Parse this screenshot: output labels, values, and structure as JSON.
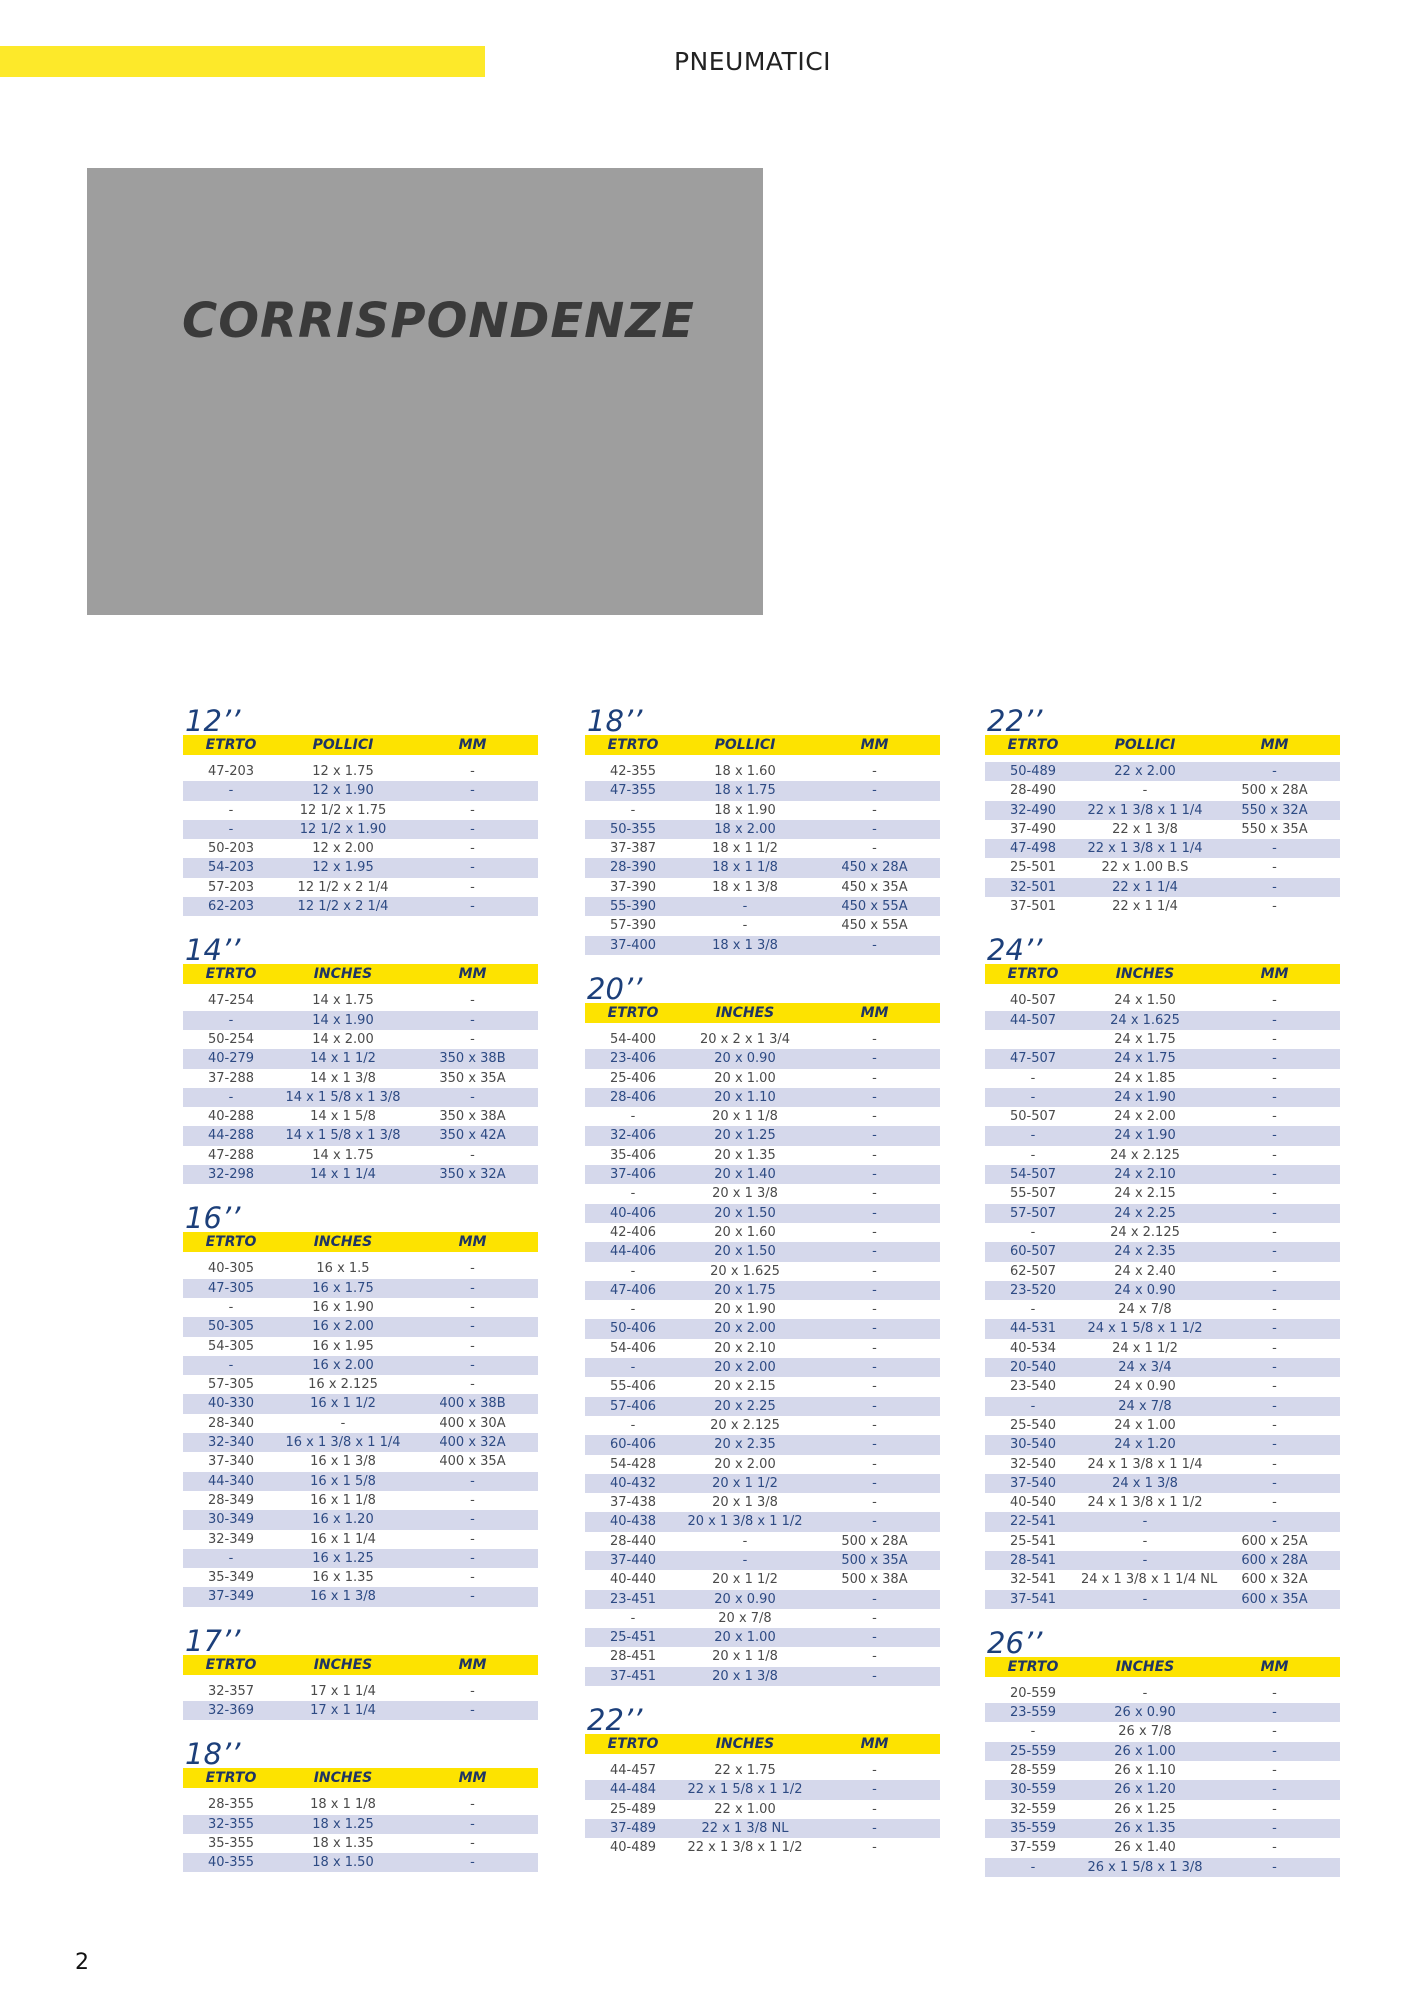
{
  "header": {
    "title": "PNEUMATICI",
    "accent_color": "#fde92a"
  },
  "hero": {
    "title": "CORRISPONDENZE"
  },
  "page_number": "2",
  "columns": [
    [
      {
        "title": "12’’",
        "headers": [
          "ETRTO",
          "POLLICI",
          "MM"
        ],
        "rows": [
          [
            "47-203",
            "12 x 1.75",
            "-"
          ],
          [
            "-",
            "12 x 1.90",
            "-"
          ],
          [
            "-",
            "12 1/2 x 1.75",
            "-"
          ],
          [
            "-",
            "12 1/2 x 1.90",
            "-"
          ],
          [
            "50-203",
            "12 x 2.00",
            "-"
          ],
          [
            "54-203",
            "12 x 1.95",
            "-"
          ],
          [
            "57-203",
            "12 1/2 x 2 1/4",
            "-"
          ],
          [
            "62-203",
            "12 1/2 x 2 1/4",
            "-"
          ]
        ]
      },
      {
        "title": "14’’",
        "headers": [
          "ETRTO",
          "INCHES",
          "MM"
        ],
        "rows": [
          [
            "47-254",
            "14 x 1.75",
            "-"
          ],
          [
            "-",
            "14 x 1.90",
            "-"
          ],
          [
            "50-254",
            "14 x 2.00",
            "-"
          ],
          [
            "40-279",
            "14 x 1 1/2",
            "350 x 38B"
          ],
          [
            "37-288",
            "14 x 1 3/8",
            "350 x 35A"
          ],
          [
            "-",
            "14 x 1 5/8 x 1 3/8",
            "-"
          ],
          [
            "40-288",
            "14 x 1 5/8",
            "350 x 38A"
          ],
          [
            "44-288",
            "14 x 1 5/8 x 1 3/8",
            "350 x 42A"
          ],
          [
            "47-288",
            "14 x 1.75",
            "-"
          ],
          [
            "32-298",
            "14 x 1 1/4",
            "350 x 32A"
          ]
        ]
      },
      {
        "title": "16’’",
        "headers": [
          "ETRTO",
          "INCHES",
          "MM"
        ],
        "rows": [
          [
            "40-305",
            "16 x 1.5",
            "-"
          ],
          [
            "47-305",
            "16 x 1.75",
            "-"
          ],
          [
            "-",
            "16 x 1.90",
            "-"
          ],
          [
            "50-305",
            "16 x 2.00",
            "-"
          ],
          [
            "54-305",
            "16 x 1.95",
            "-"
          ],
          [
            "-",
            "16 x 2.00",
            "-"
          ],
          [
            "57-305",
            "16 x 2.125",
            "-"
          ],
          [
            "40-330",
            "16 x 1 1/2",
            "400 x 38B"
          ],
          [
            "28-340",
            "-",
            "400 x 30A"
          ],
          [
            "32-340",
            "16 x 1 3/8 x 1 1/4",
            "400 x 32A"
          ],
          [
            "37-340",
            "16 x 1 3/8",
            "400 x 35A"
          ],
          [
            "44-340",
            "16 x 1 5/8",
            "-"
          ],
          [
            "28-349",
            "16 x 1 1/8",
            "-"
          ],
          [
            "30-349",
            "16 x 1.20",
            "-"
          ],
          [
            "32-349",
            "16 x 1 1/4",
            "-"
          ],
          [
            "-",
            "16 x 1.25",
            "-"
          ],
          [
            "35-349",
            "16 x 1.35",
            "-"
          ],
          [
            "37-349",
            "16 x 1 3/8",
            "-"
          ]
        ]
      },
      {
        "title": "17’’",
        "headers": [
          "ETRTO",
          "INCHES",
          "MM"
        ],
        "rows": [
          [
            "32-357",
            "17 x 1 1/4",
            "-"
          ],
          [
            "32-369",
            "17 x 1 1/4",
            "-"
          ]
        ]
      },
      {
        "title": "18’’",
        "headers": [
          "ETRTO",
          "INCHES",
          "MM"
        ],
        "rows": [
          [
            "28-355",
            "18 x 1 1/8",
            "-"
          ],
          [
            "32-355",
            "18 x 1.25",
            "-"
          ],
          [
            "35-355",
            "18 x 1.35",
            "-"
          ],
          [
            "40-355",
            "18 x 1.50",
            "-"
          ]
        ]
      }
    ],
    [
      {
        "title": "18’’",
        "headers": [
          "ETRTO",
          "POLLICI",
          "MM"
        ],
        "rows": [
          [
            "42-355",
            "18 x 1.60",
            "-"
          ],
          [
            "47-355",
            "18 x 1.75",
            "-"
          ],
          [
            "-",
            "18 x 1.90",
            "-"
          ],
          [
            "50-355",
            "18 x 2.00",
            "-"
          ],
          [
            "37-387",
            "18 x 1 1/2",
            "-"
          ],
          [
            "28-390",
            "18 x 1 1/8",
            "450 x 28A"
          ],
          [
            "37-390",
            "18 x 1 3/8",
            "450 x 35A"
          ],
          [
            "55-390",
            "-",
            "450 x 55A"
          ],
          [
            "57-390",
            "-",
            "450 x 55A"
          ],
          [
            "37-400",
            "18 x 1 3/8",
            "-"
          ]
        ]
      },
      {
        "title": "20’’",
        "headers": [
          "ETRTO",
          "INCHES",
          "MM"
        ],
        "rows": [
          [
            "54-400",
            "20 x 2 x 1 3/4",
            "-"
          ],
          [
            "23-406",
            "20 x 0.90",
            "-"
          ],
          [
            "25-406",
            "20 x 1.00",
            "-"
          ],
          [
            "28-406",
            "20 x 1.10",
            "-"
          ],
          [
            "-",
            "20 x 1 1/8",
            "-"
          ],
          [
            "32-406",
            "20 x 1.25",
            "-"
          ],
          [
            "35-406",
            "20 x 1.35",
            "-"
          ],
          [
            "37-406",
            "20 x 1.40",
            "-"
          ],
          [
            "-",
            "20 x 1 3/8",
            "-"
          ],
          [
            "40-406",
            "20 x 1.50",
            "-"
          ],
          [
            "42-406",
            "20 x 1.60",
            "-"
          ],
          [
            "44-406",
            "20 x 1.50",
            "-"
          ],
          [
            "-",
            "20 x 1.625",
            "-"
          ],
          [
            "47-406",
            "20 x 1.75",
            "-"
          ],
          [
            "-",
            "20 x 1.90",
            "-"
          ],
          [
            "50-406",
            "20 x 2.00",
            "-"
          ],
          [
            "54-406",
            "20 x 2.10",
            "-"
          ],
          [
            "-",
            "20 x 2.00",
            "-"
          ],
          [
            "55-406",
            "20 x 2.15",
            "-"
          ],
          [
            "57-406",
            "20 x 2.25",
            "-"
          ],
          [
            "-",
            "20 x 2.125",
            "-"
          ],
          [
            "60-406",
            "20 x 2.35",
            "-"
          ],
          [
            "54-428",
            "20 x 2.00",
            "-"
          ],
          [
            "40-432",
            "20 x 1 1/2",
            "-"
          ],
          [
            "37-438",
            "20 x 1 3/8",
            "-"
          ],
          [
            "40-438",
            "20 x 1 3/8 x 1 1/2",
            "-"
          ],
          [
            "28-440",
            "-",
            "500 x 28A"
          ],
          [
            "37-440",
            "-",
            "500 x 35A"
          ],
          [
            "40-440",
            "20 x 1 1/2",
            "500 x 38A"
          ],
          [
            "23-451",
            "20 x 0.90",
            "-"
          ],
          [
            "-",
            "20 x 7/8",
            "-"
          ],
          [
            "25-451",
            "20 x 1.00",
            "-"
          ],
          [
            "28-451",
            "20 x 1 1/8",
            "-"
          ],
          [
            "37-451",
            "20 x 1 3/8",
            "-"
          ]
        ]
      },
      {
        "title": "22’’",
        "headers": [
          "ETRTO",
          "INCHES",
          "MM"
        ],
        "rows": [
          [
            "44-457",
            "22 x 1.75",
            "-"
          ],
          [
            "44-484",
            "22 x 1 5/8 x 1 1/2",
            "-"
          ],
          [
            "25-489",
            "22 x 1.00",
            "-"
          ],
          [
            "37-489",
            "22 x 1 3/8 NL",
            "-"
          ],
          [
            "40-489",
            "22 x 1 3/8 x 1 1/2",
            "-"
          ]
        ]
      }
    ],
    [
      {
        "title": "22’’",
        "headers": [
          "ETRTO",
          "POLLICI",
          "MM"
        ],
        "rows": [
          [
            "50-489",
            "22 x 2.00",
            "-"
          ],
          [
            "28-490",
            "-",
            "500 x 28A"
          ],
          [
            "32-490",
            "22 x 1 3/8 x 1 1/4",
            "550 x 32A"
          ],
          [
            "37-490",
            "22 x 1 3/8",
            "550 x 35A"
          ],
          [
            "47-498",
            "22 x 1 3/8 x 1 1/4",
            "-"
          ],
          [
            "25-501",
            "22 x 1.00 B.S",
            "-"
          ],
          [
            "32-501",
            "22 x 1 1/4",
            "-"
          ],
          [
            "37-501",
            "22 x 1 1/4",
            "-"
          ]
        ]
      },
      {
        "title": "24’’",
        "headers": [
          "ETRTO",
          "INCHES",
          "MM"
        ],
        "rows": [
          [
            "40-507",
            "24 x 1.50",
            "-"
          ],
          [
            "44-507",
            "24 x 1.625",
            "-"
          ],
          [
            "",
            "24 x 1.75",
            "-"
          ],
          [
            "47-507",
            "24 x 1.75",
            "-"
          ],
          [
            "-",
            "24 x 1.85",
            "-"
          ],
          [
            "-",
            "24 x 1.90",
            "-"
          ],
          [
            "50-507",
            "24 x 2.00",
            "-"
          ],
          [
            "-",
            "24 x 1.90",
            "-"
          ],
          [
            "-",
            "24 x 2.125",
            "-"
          ],
          [
            "54-507",
            "24 x 2.10",
            "-"
          ],
          [
            "55-507",
            "24 x 2.15",
            "-"
          ],
          [
            "57-507",
            "24 x 2.25",
            "-"
          ],
          [
            "-",
            "24 x 2.125",
            "-"
          ],
          [
            "60-507",
            "24 x 2.35",
            "-"
          ],
          [
            "62-507",
            "24 x 2.40",
            "-"
          ],
          [
            "23-520",
            "24 x 0.90",
            "-"
          ],
          [
            "-",
            "24 x 7/8",
            "-"
          ],
          [
            "44-531",
            "24 x 1 5/8 x 1 1/2",
            "-"
          ],
          [
            "40-534",
            "24 x 1 1/2",
            "-"
          ],
          [
            "20-540",
            "24 x 3/4",
            "-"
          ],
          [
            "23-540",
            "24 x 0.90",
            "-"
          ],
          [
            "-",
            "24 x 7/8",
            "-"
          ],
          [
            "25-540",
            "24 x 1.00",
            "-"
          ],
          [
            "30-540",
            "24 x 1.20",
            "-"
          ],
          [
            "32-540",
            "24 x 1 3/8 x 1 1/4",
            "-"
          ],
          [
            "37-540",
            "24 x 1 3/8",
            "-"
          ],
          [
            "40-540",
            "24 x 1 3/8 x 1 1/2",
            "-"
          ],
          [
            "22-541",
            "-",
            "-"
          ],
          [
            "25-541",
            "-",
            "600 x 25A"
          ],
          [
            "28-541",
            "-",
            "600 x 28A"
          ],
          [
            "32-541",
            "24 x 1 3/8 x 1 1/4 NL",
            "600 x 32A"
          ],
          [
            "37-541",
            "-",
            "600 x 35A"
          ]
        ]
      },
      {
        "title": "26’’",
        "headers": [
          "ETRTO",
          "INCHES",
          "MM"
        ],
        "rows": [
          [
            "20-559",
            "-",
            "-"
          ],
          [
            "23-559",
            "26 x 0.90",
            "-"
          ],
          [
            "-",
            "26 x 7/8",
            "-"
          ],
          [
            "25-559",
            "26 x 1.00",
            "-"
          ],
          [
            "28-559",
            "26 x 1.10",
            "-"
          ],
          [
            "30-559",
            "26 x 1.20",
            "-"
          ],
          [
            "32-559",
            "26 x 1.25",
            "-"
          ],
          [
            "35-559",
            "26 x 1.35",
            "-"
          ],
          [
            "37-559",
            "26 x 1.40",
            "-"
          ],
          [
            "-",
            "26 x 1 5/8 x 1 3/8",
            "-"
          ]
        ]
      }
    ]
  ]
}
